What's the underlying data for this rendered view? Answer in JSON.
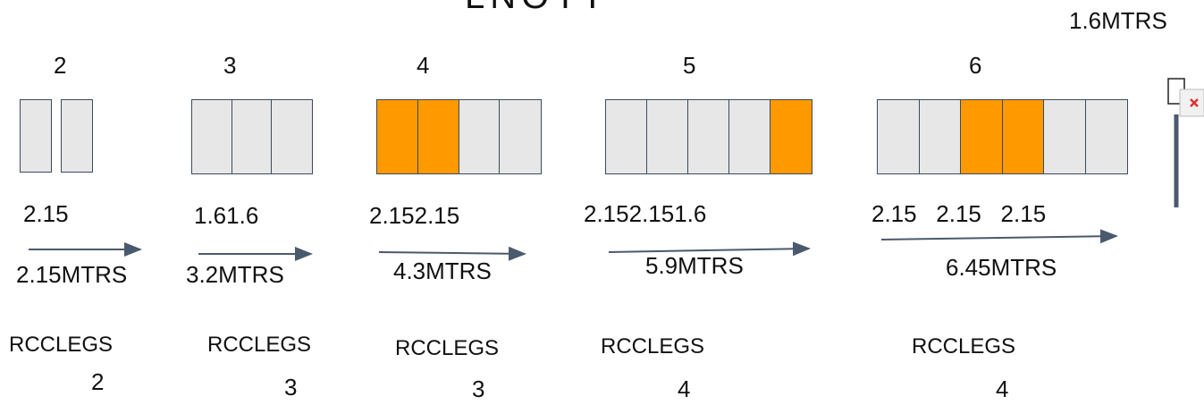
{
  "header": {
    "title_fragment": "LNOTT",
    "top_right_label": "1.6MTRS"
  },
  "colors": {
    "cell_fill": "#e7e7e7",
    "cell_highlight": "#ff9900",
    "stroke": "#3b4a5e"
  },
  "groups": [
    {
      "count_label": "2",
      "cells": [
        "plain",
        "plain"
      ],
      "widths_label": "2.15",
      "total_label": "2.15MTRS",
      "legs_label": "RCCLEGS",
      "legs_count": "2"
    },
    {
      "count_label": "3",
      "cells": [
        "plain",
        "plain",
        "plain"
      ],
      "widths_label": "1.61.6",
      "total_label": "3.2MTRS",
      "legs_label": "RCCLEGS",
      "legs_count": "3"
    },
    {
      "count_label": "4",
      "cells": [
        "orange",
        "orange",
        "plain",
        "plain"
      ],
      "widths_label": "2.152.15",
      "total_label": "4.3MTRS",
      "legs_label": "RCCLEGS",
      "legs_count": "3"
    },
    {
      "count_label": "5",
      "cells": [
        "plain",
        "plain",
        "plain",
        "plain",
        "orange"
      ],
      "widths_label": "2.152.151.6",
      "total_label": "5.9MTRS",
      "legs_label": "RCCLEGS",
      "legs_count": "4"
    },
    {
      "count_label": "6",
      "cells": [
        "plain",
        "plain",
        "orange",
        "orange",
        "plain",
        "plain"
      ],
      "widths_label": "2.15   2.15   2.15",
      "total_label": "6.45MTRS",
      "legs_label": "RCCLEGS",
      "legs_count": "4"
    }
  ]
}
